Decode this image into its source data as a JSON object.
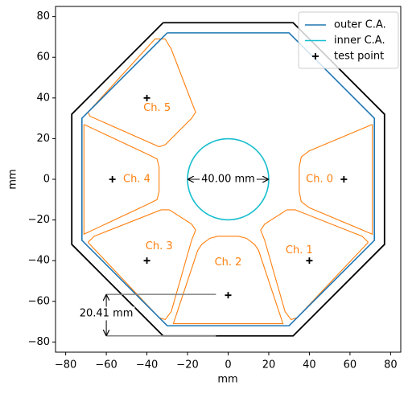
{
  "chart_data": {
    "type": "line",
    "xlabel": "mm",
    "ylabel": "mm",
    "xlim": [
      -85,
      85
    ],
    "ylim": [
      -85,
      85
    ],
    "xticks": [
      {
        "value": -80,
        "label": "−80"
      },
      {
        "value": -60,
        "label": "−60"
      },
      {
        "value": -40,
        "label": "−40"
      },
      {
        "value": -20,
        "label": "−20"
      },
      0,
      20,
      40,
      60,
      80
    ],
    "yticks": [
      {
        "value": -80,
        "label": "−80"
      },
      {
        "value": -60,
        "label": "−60"
      },
      {
        "value": -40,
        "label": "−40"
      },
      {
        "value": -20,
        "label": "−20"
      },
      0,
      20,
      40,
      60,
      80
    ],
    "legend": "upper right",
    "boundary": {
      "color": "#000000",
      "x": [
        -32,
        32,
        77,
        77,
        32,
        -32,
        -77,
        -77,
        -32
      ],
      "y": [
        77,
        77,
        32,
        -32,
        -77,
        -77,
        -32,
        32,
        77
      ]
    },
    "series": [
      {
        "name": "outer C.A.",
        "color": "#1f77b4",
        "x": [
          -30,
          30,
          72,
          72,
          30,
          -30,
          -72,
          -72,
          -30
        ],
        "y": [
          72,
          72,
          30,
          -30,
          -72,
          -72,
          -30,
          30,
          72
        ]
      },
      {
        "name": "inner C.A.",
        "color": "#17becf",
        "shape": "circle",
        "center": [
          0,
          0
        ],
        "radius": 20
      },
      {
        "name": "test point",
        "color": "#000000",
        "marker": "+",
        "x": [
          57,
          40,
          0,
          -40,
          -57,
          -40
        ],
        "y": [
          0,
          -40,
          -57,
          -40,
          0,
          40
        ]
      }
    ],
    "channels": [
      {
        "label": "Ch. 0",
        "color": "#ff7f0e",
        "label_at": [
          45,
          0
        ],
        "x": [
          71,
          71,
          40,
          36,
          35,
          35,
          36,
          40,
          71
        ],
        "y": [
          27,
          -27,
          -14,
          -11,
          -6,
          6,
          11,
          14,
          27
        ]
      },
      {
        "label": "Ch. 1",
        "color": "#ff7f0e",
        "label_at": [
          35,
          -35
        ],
        "x": [
          69,
          66,
          33,
          29,
          18,
          16,
          18,
          28,
          31,
          34,
          69
        ],
        "y": [
          -31,
          -28,
          -15,
          -15,
          -22,
          -25,
          -30,
          -65,
          -69,
          -68,
          -31
        ]
      },
      {
        "label": "Ch. 2",
        "color": "#ff7f0e",
        "label_at": [
          0,
          -41
        ],
        "x": [
          -5,
          5,
          9,
          13,
          15,
          27,
          -27,
          -15,
          -13,
          -9,
          -5
        ],
        "y": [
          -28,
          -28,
          -29,
          -32,
          -35,
          -71,
          -71,
          -35,
          -32,
          -29,
          -28
        ]
      },
      {
        "label": "Ch. 3",
        "color": "#ff7f0e",
        "label_at": [
          -34,
          -33
        ],
        "x": [
          -69,
          -66,
          -33,
          -29,
          -18,
          -16,
          -18,
          -28,
          -31,
          -34,
          -69
        ],
        "y": [
          -31,
          -28,
          -15,
          -15,
          -22,
          -25,
          -30,
          -65,
          -69,
          -68,
          -31
        ]
      },
      {
        "label": "Ch. 4",
        "color": "#ff7f0e",
        "label_at": [
          -45,
          0
        ],
        "x": [
          -71,
          -71,
          -39,
          -35,
          -34,
          -34,
          -35,
          -39,
          -71
        ],
        "y": [
          27,
          -27,
          -12,
          -10,
          -6,
          6,
          10,
          12,
          27
        ]
      },
      {
        "label": "Ch. 5",
        "color": "#ff7f0e",
        "label_at": [
          -35,
          35
        ],
        "x": [
          -31,
          -28,
          -18,
          -16,
          -18,
          -31,
          -34,
          -68,
          -69,
          -36,
          -31
        ],
        "y": [
          69,
          64,
          38,
          33,
          30,
          17,
          16,
          31,
          33,
          69,
          69
        ]
      }
    ],
    "annotations": [
      {
        "text": "40.00 mm",
        "at": [
          0,
          0
        ],
        "from": [
          -20,
          0
        ],
        "to": [
          20,
          0
        ]
      },
      {
        "text": "20.41 mm",
        "at": [
          -60,
          -66
        ],
        "from": [
          -60,
          -56.59
        ],
        "to": [
          -60,
          -77
        ],
        "guides": [
          {
            "x": [
              -60,
              -6
            ],
            "y": [
              -56.59,
              -56.59
            ]
          },
          {
            "x": [
              -60,
              -6
            ],
            "y": [
              -77,
              -77
            ]
          }
        ]
      }
    ]
  }
}
